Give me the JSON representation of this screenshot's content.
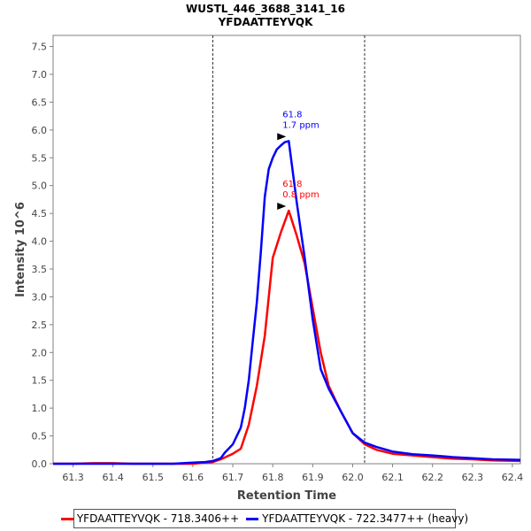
{
  "chart_data": {
    "type": "line",
    "title": "WUSTL_446_3688_3141_16",
    "subtitle": "YFDAATTEYVQK",
    "xlabel": "Retention Time",
    "ylabel": "Intensity 10^6",
    "xlim": [
      61.25,
      62.42
    ],
    "ylim": [
      0,
      7.7
    ],
    "xticks": [
      "61.3",
      "61.4",
      "61.5",
      "61.6",
      "61.7",
      "61.8",
      "61.9",
      "62.0",
      "62.1",
      "62.2",
      "62.3",
      "62.4"
    ],
    "yticks": [
      "0.0",
      "0.5",
      "1.0",
      "1.5",
      "2.0",
      "2.5",
      "3.0",
      "3.5",
      "4.0",
      "4.5",
      "5.0",
      "5.5",
      "6.0",
      "6.5",
      "7.0",
      "7.5"
    ],
    "grid": false,
    "legend_position": "bottom",
    "integration_bounds": [
      61.65,
      62.03
    ],
    "series": [
      {
        "name": "YFDAATTEYVQK - 718.3406++",
        "color": "#ff0000",
        "x": [
          61.25,
          61.3,
          61.35,
          61.4,
          61.45,
          61.5,
          61.55,
          61.6,
          61.63,
          61.65,
          61.67,
          61.7,
          61.72,
          61.74,
          61.76,
          61.78,
          61.8,
          61.82,
          61.84,
          61.86,
          61.88,
          61.9,
          61.92,
          61.94,
          61.97,
          62.0,
          62.03,
          62.06,
          62.1,
          62.15,
          62.2,
          62.25,
          62.3,
          62.35,
          62.42
        ],
        "y": [
          0.0,
          0.0,
          0.01,
          0.01,
          0.0,
          0.0,
          0.0,
          0.0,
          0.02,
          0.03,
          0.08,
          0.18,
          0.27,
          0.7,
          1.4,
          2.3,
          3.7,
          4.15,
          4.55,
          4.1,
          3.6,
          2.8,
          2.0,
          1.4,
          0.95,
          0.55,
          0.35,
          0.25,
          0.18,
          0.15,
          0.12,
          0.09,
          0.08,
          0.06,
          0.05
        ]
      },
      {
        "name": "YFDAATTEYVQK - 722.3477++ (heavy)",
        "color": "#0000ff",
        "x": [
          61.25,
          61.3,
          61.35,
          61.4,
          61.45,
          61.5,
          61.55,
          61.6,
          61.63,
          61.65,
          61.67,
          61.68,
          61.7,
          61.71,
          61.72,
          61.73,
          61.74,
          61.75,
          61.76,
          61.77,
          61.78,
          61.79,
          61.8,
          61.81,
          61.82,
          61.83,
          61.84,
          61.86,
          61.88,
          61.9,
          61.92,
          61.94,
          61.97,
          62.0,
          62.03,
          62.06,
          62.1,
          62.15,
          62.2,
          62.25,
          62.3,
          62.35,
          62.42
        ],
        "y": [
          0.0,
          0.0,
          0.0,
          0.0,
          0.0,
          0.0,
          0.0,
          0.02,
          0.03,
          0.05,
          0.1,
          0.2,
          0.35,
          0.5,
          0.65,
          1.0,
          1.5,
          2.2,
          2.9,
          3.8,
          4.8,
          5.3,
          5.5,
          5.65,
          5.72,
          5.78,
          5.8,
          4.7,
          3.7,
          2.6,
          1.7,
          1.35,
          0.95,
          0.55,
          0.38,
          0.3,
          0.22,
          0.17,
          0.15,
          0.12,
          0.1,
          0.08,
          0.07
        ]
      }
    ],
    "annotations": [
      {
        "series": 0,
        "x": 61.84,
        "y": 4.55,
        "lines": [
          "61.8",
          "0.8 ppm"
        ],
        "color": "#ff0000"
      },
      {
        "series": 1,
        "x": 61.84,
        "y": 5.8,
        "lines": [
          "61.8",
          "1.7 ppm"
        ],
        "color": "#0000ff"
      }
    ]
  },
  "legend": {
    "items": [
      {
        "label": "YFDAATTEYVQK - 718.3406++",
        "color": "#ff0000"
      },
      {
        "label": "YFDAATTEYVQK - 722.3477++ (heavy)",
        "color": "#0000ff"
      }
    ]
  }
}
